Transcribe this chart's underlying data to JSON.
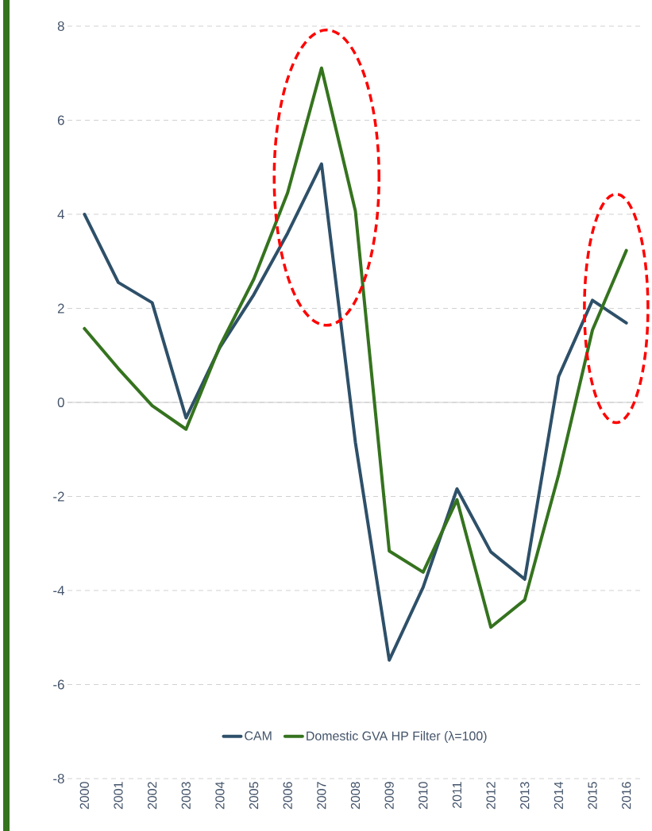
{
  "chart_data": {
    "type": "line",
    "categories": [
      "2000",
      "2001",
      "2002",
      "2003",
      "2004",
      "2005",
      "2006",
      "2007",
      "2008",
      "2009",
      "2010",
      "2011",
      "2012",
      "2013",
      "2014",
      "2015",
      "2016"
    ],
    "series": [
      {
        "name": "CAM",
        "color": "#2f5069",
        "values": [
          4.0,
          2.55,
          2.12,
          -0.33,
          1.17,
          2.29,
          3.6,
          5.07,
          -0.85,
          -5.48,
          -3.93,
          -1.84,
          -3.18,
          -3.76,
          0.55,
          2.17,
          1.69
        ]
      },
      {
        "name": "Domestic GVA HP Filter (λ=100)",
        "color": "#35731f",
        "values": [
          1.57,
          0.72,
          -0.07,
          -0.57,
          1.2,
          2.62,
          4.46,
          7.11,
          4.07,
          -3.16,
          -3.61,
          -2.07,
          -4.78,
          -4.2,
          -1.54,
          1.54,
          3.23
        ]
      }
    ],
    "ylim": [
      -8,
      8
    ],
    "yticks": [
      -8,
      -6,
      -4,
      -2,
      0,
      2,
      4,
      6,
      8
    ],
    "grid": "y",
    "legend": "bottom",
    "marker": "none",
    "line_style": "solid"
  }
}
